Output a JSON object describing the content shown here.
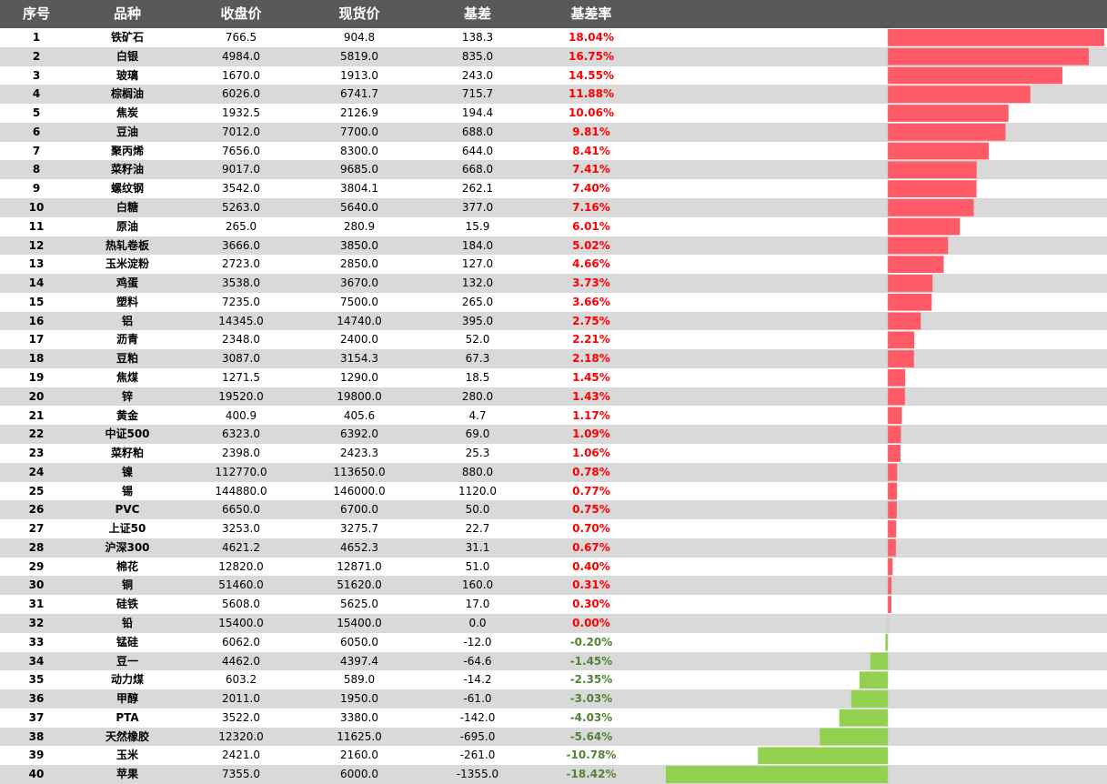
{
  "headers": {
    "index": "序号",
    "name": "品种",
    "close": "收盘价",
    "spot": "现货价",
    "basis": "基差",
    "rate": "基差率"
  },
  "colors": {
    "header_bg": "#595959",
    "alt_row": "#d9d9d9",
    "positive": "#ff0000",
    "negative": "#548235",
    "bar_positive": "#ff5b67",
    "bar_negative": "#92d050"
  },
  "chart_data": {
    "type": "bar",
    "orientation": "horizontal",
    "xlim": [
      -18.42,
      18.04
    ],
    "rows": [
      {
        "idx": "1",
        "name": "铁矿石",
        "close": "766.5",
        "spot": "904.8",
        "basis": "138.3",
        "rate": "18.04%",
        "value": 18.04
      },
      {
        "idx": "2",
        "name": "白银",
        "close": "4984.0",
        "spot": "5819.0",
        "basis": "835.0",
        "rate": "16.75%",
        "value": 16.75
      },
      {
        "idx": "3",
        "name": "玻璃",
        "close": "1670.0",
        "spot": "1913.0",
        "basis": "243.0",
        "rate": "14.55%",
        "value": 14.55
      },
      {
        "idx": "4",
        "name": "棕榈油",
        "close": "6026.0",
        "spot": "6741.7",
        "basis": "715.7",
        "rate": "11.88%",
        "value": 11.88
      },
      {
        "idx": "5",
        "name": "焦炭",
        "close": "1932.5",
        "spot": "2126.9",
        "basis": "194.4",
        "rate": "10.06%",
        "value": 10.06
      },
      {
        "idx": "6",
        "name": "豆油",
        "close": "7012.0",
        "spot": "7700.0",
        "basis": "688.0",
        "rate": "9.81%",
        "value": 9.81
      },
      {
        "idx": "7",
        "name": "聚丙烯",
        "close": "7656.0",
        "spot": "8300.0",
        "basis": "644.0",
        "rate": "8.41%",
        "value": 8.41
      },
      {
        "idx": "8",
        "name": "菜籽油",
        "close": "9017.0",
        "spot": "9685.0",
        "basis": "668.0",
        "rate": "7.41%",
        "value": 7.41
      },
      {
        "idx": "9",
        "name": "螺纹钢",
        "close": "3542.0",
        "spot": "3804.1",
        "basis": "262.1",
        "rate": "7.40%",
        "value": 7.4
      },
      {
        "idx": "10",
        "name": "白糖",
        "close": "5263.0",
        "spot": "5640.0",
        "basis": "377.0",
        "rate": "7.16%",
        "value": 7.16
      },
      {
        "idx": "11",
        "name": "原油",
        "close": "265.0",
        "spot": "280.9",
        "basis": "15.9",
        "rate": "6.01%",
        "value": 6.01
      },
      {
        "idx": "12",
        "name": "热轧卷板",
        "close": "3666.0",
        "spot": "3850.0",
        "basis": "184.0",
        "rate": "5.02%",
        "value": 5.02
      },
      {
        "idx": "13",
        "name": "玉米淀粉",
        "close": "2723.0",
        "spot": "2850.0",
        "basis": "127.0",
        "rate": "4.66%",
        "value": 4.66
      },
      {
        "idx": "14",
        "name": "鸡蛋",
        "close": "3538.0",
        "spot": "3670.0",
        "basis": "132.0",
        "rate": "3.73%",
        "value": 3.73
      },
      {
        "idx": "15",
        "name": "塑料",
        "close": "7235.0",
        "spot": "7500.0",
        "basis": "265.0",
        "rate": "3.66%",
        "value": 3.66
      },
      {
        "idx": "16",
        "name": "铝",
        "close": "14345.0",
        "spot": "14740.0",
        "basis": "395.0",
        "rate": "2.75%",
        "value": 2.75
      },
      {
        "idx": "17",
        "name": "沥青",
        "close": "2348.0",
        "spot": "2400.0",
        "basis": "52.0",
        "rate": "2.21%",
        "value": 2.21
      },
      {
        "idx": "18",
        "name": "豆粕",
        "close": "3087.0",
        "spot": "3154.3",
        "basis": "67.3",
        "rate": "2.18%",
        "value": 2.18
      },
      {
        "idx": "19",
        "name": "焦煤",
        "close": "1271.5",
        "spot": "1290.0",
        "basis": "18.5",
        "rate": "1.45%",
        "value": 1.45
      },
      {
        "idx": "20",
        "name": "锌",
        "close": "19520.0",
        "spot": "19800.0",
        "basis": "280.0",
        "rate": "1.43%",
        "value": 1.43
      },
      {
        "idx": "21",
        "name": "黄金",
        "close": "400.9",
        "spot": "405.6",
        "basis": "4.7",
        "rate": "1.17%",
        "value": 1.17
      },
      {
        "idx": "22",
        "name": "中证500",
        "close": "6323.0",
        "spot": "6392.0",
        "basis": "69.0",
        "rate": "1.09%",
        "value": 1.09
      },
      {
        "idx": "23",
        "name": "菜籽粕",
        "close": "2398.0",
        "spot": "2423.3",
        "basis": "25.3",
        "rate": "1.06%",
        "value": 1.06
      },
      {
        "idx": "24",
        "name": "镍",
        "close": "112770.0",
        "spot": "113650.0",
        "basis": "880.0",
        "rate": "0.78%",
        "value": 0.78
      },
      {
        "idx": "25",
        "name": "锡",
        "close": "144880.0",
        "spot": "146000.0",
        "basis": "1120.0",
        "rate": "0.77%",
        "value": 0.77
      },
      {
        "idx": "26",
        "name": "PVC",
        "close": "6650.0",
        "spot": "6700.0",
        "basis": "50.0",
        "rate": "0.75%",
        "value": 0.75
      },
      {
        "idx": "27",
        "name": "上证50",
        "close": "3253.0",
        "spot": "3275.7",
        "basis": "22.7",
        "rate": "0.70%",
        "value": 0.7
      },
      {
        "idx": "28",
        "name": "沪深300",
        "close": "4621.2",
        "spot": "4652.3",
        "basis": "31.1",
        "rate": "0.67%",
        "value": 0.67
      },
      {
        "idx": "29",
        "name": "棉花",
        "close": "12820.0",
        "spot": "12871.0",
        "basis": "51.0",
        "rate": "0.40%",
        "value": 0.4
      },
      {
        "idx": "30",
        "name": "铜",
        "close": "51460.0",
        "spot": "51620.0",
        "basis": "160.0",
        "rate": "0.31%",
        "value": 0.31
      },
      {
        "idx": "31",
        "name": "硅铁",
        "close": "5608.0",
        "spot": "5625.0",
        "basis": "17.0",
        "rate": "0.30%",
        "value": 0.3
      },
      {
        "idx": "32",
        "name": "铅",
        "close": "15400.0",
        "spot": "15400.0",
        "basis": "0.0",
        "rate": "0.00%",
        "value": 0.0
      },
      {
        "idx": "33",
        "name": "锰硅",
        "close": "6062.0",
        "spot": "6050.0",
        "basis": "-12.0",
        "rate": "-0.20%",
        "value": -0.2
      },
      {
        "idx": "34",
        "name": "豆一",
        "close": "4462.0",
        "spot": "4397.4",
        "basis": "-64.6",
        "rate": "-1.45%",
        "value": -1.45
      },
      {
        "idx": "35",
        "name": "动力煤",
        "close": "603.2",
        "spot": "589.0",
        "basis": "-14.2",
        "rate": "-2.35%",
        "value": -2.35
      },
      {
        "idx": "36",
        "name": "甲醇",
        "close": "2011.0",
        "spot": "1950.0",
        "basis": "-61.0",
        "rate": "-3.03%",
        "value": -3.03
      },
      {
        "idx": "37",
        "name": "PTA",
        "close": "3522.0",
        "spot": "3380.0",
        "basis": "-142.0",
        "rate": "-4.03%",
        "value": -4.03
      },
      {
        "idx": "38",
        "name": "天然橡胶",
        "close": "12320.0",
        "spot": "11625.0",
        "basis": "-695.0",
        "rate": "-5.64%",
        "value": -5.64
      },
      {
        "idx": "39",
        "name": "玉米",
        "close": "2421.0",
        "spot": "2160.0",
        "basis": "-261.0",
        "rate": "-10.78%",
        "value": -10.78
      },
      {
        "idx": "40",
        "name": "苹果",
        "close": "7355.0",
        "spot": "6000.0",
        "basis": "-1355.0",
        "rate": "-18.42%",
        "value": -18.42
      }
    ]
  }
}
